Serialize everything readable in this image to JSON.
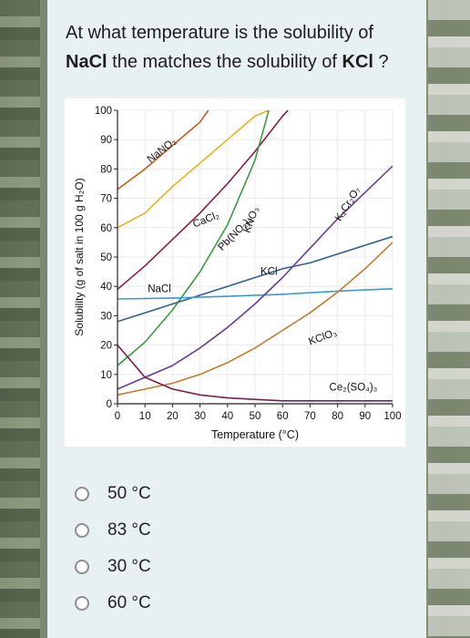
{
  "question": {
    "line1": "At what temperature is the solubility of",
    "nacl": "NaCl",
    "middle": " the matches the solubility of ",
    "kcl": "KCl",
    "end": " ?"
  },
  "chart_data": {
    "type": "line",
    "xlabel": "Temperature (°C)",
    "ylabel": "Solubility (g of salt in 100 g H₂O)",
    "xlim": [
      0,
      100
    ],
    "ylim": [
      0,
      100
    ],
    "xticks": [
      0,
      10,
      20,
      30,
      40,
      50,
      60,
      70,
      80,
      90,
      100
    ],
    "yticks": [
      0,
      10,
      20,
      30,
      40,
      50,
      60,
      70,
      80,
      90,
      100
    ],
    "grid": true,
    "series": [
      {
        "name": "NaNO₃",
        "color": "#c95a1f",
        "points": [
          [
            0,
            73
          ],
          [
            10,
            80
          ],
          [
            20,
            88
          ],
          [
            30,
            96
          ],
          [
            33,
            100
          ]
        ]
      },
      {
        "name": "CaCl₂",
        "color": "#e8b21d",
        "points": [
          [
            0,
            60
          ],
          [
            10,
            65
          ],
          [
            20,
            74
          ],
          [
            30,
            82
          ],
          [
            40,
            90
          ],
          [
            50,
            98
          ],
          [
            55,
            100
          ]
        ]
      },
      {
        "name": "Pb(NO₃)₂",
        "color": "#8b1b44",
        "points": [
          [
            0,
            39
          ],
          [
            10,
            47
          ],
          [
            20,
            56
          ],
          [
            30,
            65
          ],
          [
            40,
            75
          ],
          [
            50,
            86
          ],
          [
            60,
            98
          ],
          [
            62,
            100
          ]
        ]
      },
      {
        "name": "KNO₃",
        "color": "#3b9a3e",
        "points": [
          [
            0,
            13
          ],
          [
            10,
            21
          ],
          [
            20,
            32
          ],
          [
            30,
            45
          ],
          [
            40,
            61
          ],
          [
            50,
            83
          ],
          [
            55,
            100
          ]
        ]
      },
      {
        "name": "KCl",
        "color": "#2d5e94",
        "points": [
          [
            0,
            28
          ],
          [
            10,
            31
          ],
          [
            20,
            34
          ],
          [
            30,
            37
          ],
          [
            40,
            40
          ],
          [
            50,
            43
          ],
          [
            60,
            46
          ],
          [
            70,
            48
          ],
          [
            80,
            51
          ],
          [
            90,
            54
          ],
          [
            100,
            57
          ]
        ]
      },
      {
        "name": "NaCl",
        "color": "#3a9ad1",
        "points": [
          [
            0,
            35.7
          ],
          [
            20,
            36
          ],
          [
            40,
            36.6
          ],
          [
            60,
            37.3
          ],
          [
            80,
            38.4
          ],
          [
            100,
            39.2
          ]
        ]
      },
      {
        "name": "K₂Cr₂O₇",
        "color": "#6a3d9a",
        "points": [
          [
            0,
            5
          ],
          [
            10,
            9
          ],
          [
            20,
            13
          ],
          [
            30,
            19
          ],
          [
            40,
            26
          ],
          [
            50,
            34
          ],
          [
            60,
            43
          ],
          [
            70,
            53
          ],
          [
            80,
            63
          ],
          [
            90,
            72
          ],
          [
            100,
            81
          ]
        ]
      },
      {
        "name": "KClO₃",
        "color": "#c47a2c",
        "points": [
          [
            0,
            3
          ],
          [
            10,
            5
          ],
          [
            20,
            7
          ],
          [
            30,
            10
          ],
          [
            40,
            14
          ],
          [
            50,
            19
          ],
          [
            60,
            25
          ],
          [
            70,
            31
          ],
          [
            80,
            38
          ],
          [
            90,
            46
          ],
          [
            100,
            55
          ]
        ]
      },
      {
        "name": "Ce₂(SO₄)₃",
        "color": "#7b1e4a",
        "points": [
          [
            0,
            20
          ],
          [
            10,
            9
          ],
          [
            20,
            5
          ],
          [
            30,
            3
          ],
          [
            40,
            2
          ],
          [
            60,
            1
          ],
          [
            80,
            1
          ],
          [
            100,
            1
          ]
        ]
      }
    ]
  },
  "choices": [
    {
      "label": "50 °C"
    },
    {
      "label": "83 °C"
    },
    {
      "label": "30 °C"
    },
    {
      "label": "60 °C"
    }
  ]
}
